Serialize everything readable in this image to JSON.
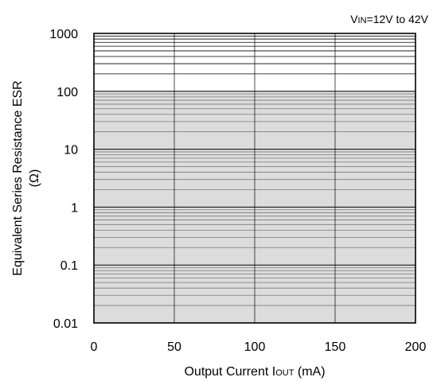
{
  "chart_data": {
    "type": "area",
    "condition": {
      "prefix": "V",
      "sub": "IN",
      "suffix": "=12V to 42V"
    },
    "xlabel": {
      "main": "Output Current I",
      "sub": "OUT",
      "unit": " (mA)"
    },
    "ylabel": [
      "Equivalent Series Resistance ESR",
      "(Ω)"
    ],
    "xlim": [
      0,
      200
    ],
    "ylim": [
      0.01,
      1000
    ],
    "yscale": "log",
    "grid": true,
    "x_ticks": [
      0,
      50,
      100,
      150,
      200
    ],
    "x_tick_labels": [
      "0",
      "50",
      "100",
      "150",
      "200"
    ],
    "y_ticks": [
      0.01,
      0.1,
      1,
      10,
      100,
      1000
    ],
    "y_tick_labels": [
      "0.01",
      "0.1",
      "1",
      "10",
      "100",
      "1000"
    ],
    "stable_region": {
      "x": [
        0,
        200
      ],
      "y_lower": 0.01,
      "y_upper": 100,
      "fill": "#dcdcdc"
    }
  }
}
